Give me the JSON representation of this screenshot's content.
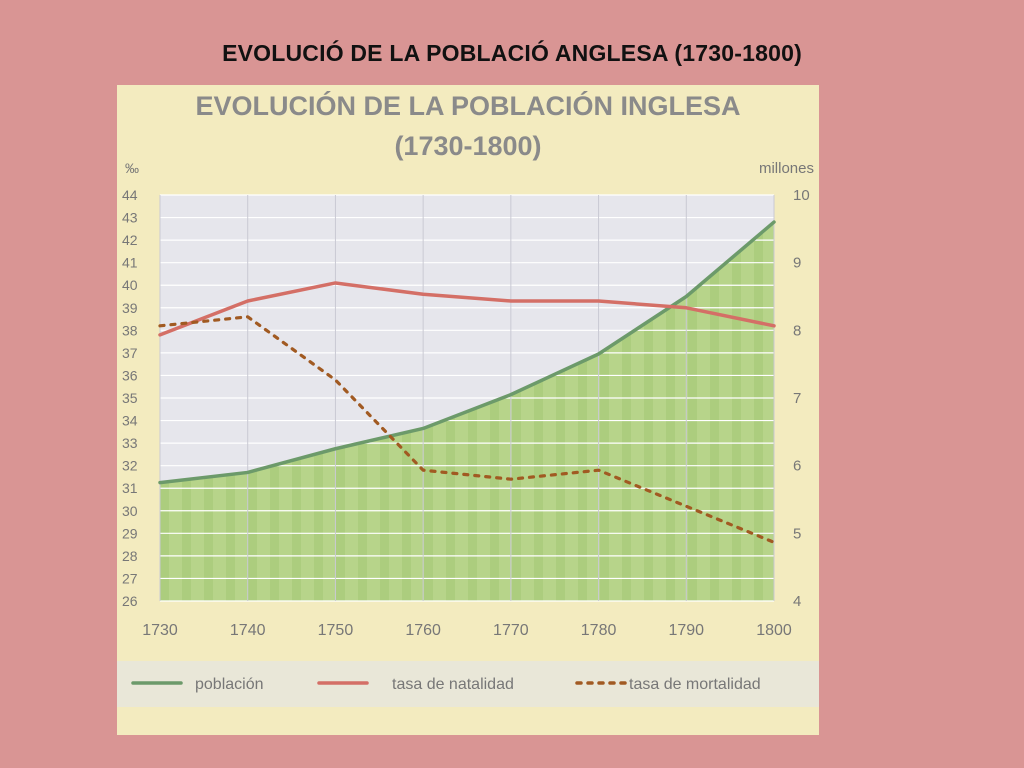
{
  "slide": {
    "title": "EVOLUCIÓ  DE LA  POBLACIÓ ANGLESA (1730-1800)"
  },
  "chart_data": {
    "type": "line",
    "title_line1": "EVOLUCIÓN DE LA POBLACIÓN INGLESA",
    "title_line2": "(1730-1800)",
    "ylabel_left": "‰",
    "ylabel_right": "millones",
    "x": [
      1730,
      1740,
      1750,
      1760,
      1770,
      1780,
      1790,
      1800
    ],
    "x_tick_labels": [
      "1730",
      "1740",
      "1750",
      "1760",
      "1770",
      "1780",
      "1790",
      "1800"
    ],
    "xlim": [
      1730,
      1800
    ],
    "ylim_left": [
      26,
      44
    ],
    "ylim_right": [
      4,
      10
    ],
    "y_left_ticks": [
      26,
      27,
      28,
      29,
      30,
      31,
      32,
      33,
      34,
      35,
      36,
      37,
      38,
      39,
      40,
      41,
      42,
      43,
      44
    ],
    "y_right_ticks": [
      4,
      5,
      6,
      7,
      8,
      9,
      10
    ],
    "grid": true,
    "legend_position": "bottom",
    "series": [
      {
        "name": "población",
        "axis": "right",
        "style": "solid-area",
        "x": [
          1730,
          1740,
          1750,
          1760,
          1770,
          1780,
          1790,
          1800
        ],
        "values": [
          5.75,
          5.9,
          6.25,
          6.55,
          7.05,
          7.65,
          8.5,
          9.6
        ]
      },
      {
        "name": "tasa de natalidad",
        "axis": "left",
        "style": "solid",
        "x": [
          1730,
          1740,
          1750,
          1760,
          1770,
          1780,
          1790,
          1800
        ],
        "values": [
          37.8,
          39.3,
          40.1,
          39.6,
          39.3,
          39.3,
          39.0,
          38.2
        ]
      },
      {
        "name": "tasa de mortalidad",
        "axis": "left",
        "style": "dotted",
        "x": [
          1730,
          1740,
          1750,
          1760,
          1770,
          1780,
          1790,
          1800
        ],
        "values": [
          38.2,
          38.6,
          35.8,
          31.8,
          31.4,
          31.8,
          30.2,
          28.6
        ]
      }
    ],
    "colors": {
      "background": "#f3ebbf",
      "plot_background": "#e6e6ec",
      "grid": "#ffffff",
      "area_fill": "#b7d48a",
      "area_stripe": "#a4c674",
      "poblacion": "#6c9a6a",
      "natalidad": "#d46f66",
      "mortalidad": "#a15a22",
      "text": "#777777",
      "title_text": "#8a8a8a"
    }
  }
}
